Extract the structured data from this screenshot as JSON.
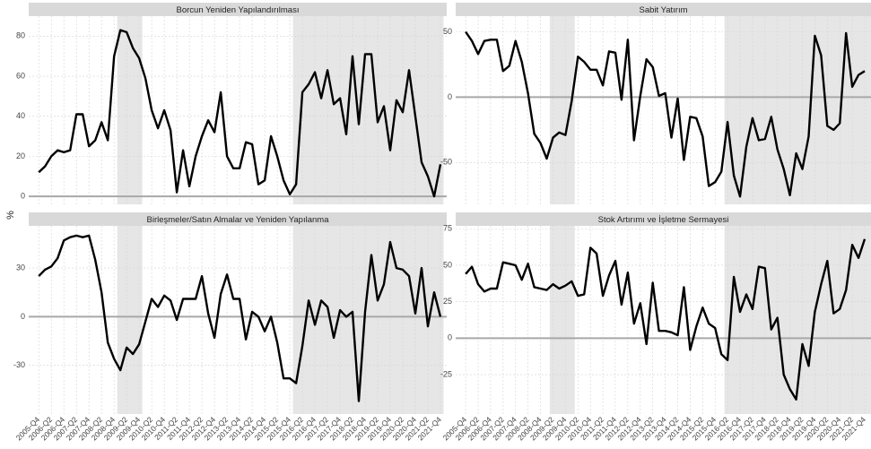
{
  "ylabel": "%",
  "chart_data": [
    {
      "type": "line",
      "title": "Borcun Yeniden Yapılandırılması",
      "color": "#000000",
      "ylim": [
        -4,
        90
      ],
      "yticks": [
        0,
        20,
        40,
        60,
        80
      ],
      "hline": 0,
      "grid": true,
      "shaded": [
        {
          "from": 12.5,
          "to": 16.5
        },
        {
          "from": 40.5,
          "to": 64.5
        }
      ],
      "values": [
        12,
        15,
        20,
        23,
        22,
        23,
        41,
        41,
        25,
        28,
        37,
        28,
        70,
        83,
        82,
        74,
        69,
        59,
        43,
        34,
        43,
        33,
        2,
        23,
        5,
        20,
        30,
        38,
        32,
        52,
        20,
        14,
        14,
        27,
        26,
        6,
        8,
        30,
        20,
        8,
        1,
        6,
        52,
        56,
        62,
        49,
        63,
        46,
        49,
        31,
        70,
        36,
        71,
        71,
        37,
        45,
        23,
        48,
        42,
        63,
        40,
        17,
        10,
        0,
        16
      ]
    },
    {
      "type": "line",
      "title": "Sabit Yatırım",
      "color": "#000000",
      "ylim": [
        -82,
        62
      ],
      "yticks": [
        -50,
        0,
        50
      ],
      "hline": 0,
      "grid": true,
      "shaded": [
        {
          "from": 13.5,
          "to": 17.5
        },
        {
          "from": 41.5,
          "to": 65
        }
      ],
      "values": [
        50,
        43,
        33,
        43,
        44,
        44,
        20,
        24,
        43,
        27,
        3,
        -28,
        -35,
        -47,
        -31,
        -27,
        -29,
        -3,
        31,
        27,
        21,
        21,
        9,
        35,
        34,
        -2,
        44,
        -33,
        1,
        29,
        23,
        1,
        3,
        -31,
        -1,
        -48,
        -15,
        -16,
        -30,
        -68,
        -65,
        -57,
        -19,
        -60,
        -76,
        -38,
        -16,
        -33,
        -32,
        -15,
        -40,
        -55,
        -75,
        -43,
        -55,
        -30,
        47,
        32,
        -22,
        -25,
        -20,
        49,
        8,
        17,
        20
      ]
    },
    {
      "type": "line",
      "title": "Birleşmeler/Satın Almalar ve Yeniden Yapılanma",
      "color": "#000000",
      "ylim": [
        -60,
        56
      ],
      "yticks": [
        -30,
        0,
        30
      ],
      "hline": 0,
      "grid": true,
      "shaded": [
        {
          "from": 12.5,
          "to": 16.5
        },
        {
          "from": 40.5,
          "to": 64.5
        }
      ],
      "categories": [
        "2005-Q4",
        null,
        "2006-Q2",
        null,
        "2006-Q4",
        null,
        "2007-Q2",
        null,
        "2007-Q4",
        null,
        "2008-Q2",
        null,
        "2008-Q4",
        null,
        "2009-Q2",
        null,
        "2009-Q4",
        null,
        "2010-Q2",
        null,
        "2010-Q4",
        null,
        "2011-Q2",
        null,
        "2011-Q4",
        null,
        "2012-Q2",
        null,
        "2012-Q4",
        null,
        "2013-Q2",
        null,
        "2013-Q4",
        null,
        "2014-Q2",
        null,
        "2014-Q4",
        null,
        "2015-Q2",
        null,
        "2015-Q4",
        null,
        "2016-Q2",
        null,
        "2016-Q4",
        null,
        "2017-Q2",
        null,
        "2017-Q4",
        null,
        "2018-Q2",
        null,
        "2018-Q4",
        null,
        "2019-Q2",
        null,
        "2019-Q4",
        null,
        "2020-Q2",
        null,
        "2020-Q4",
        null,
        "2021-Q2",
        null,
        "2021-Q4"
      ],
      "values": [
        25,
        29,
        31,
        36,
        47,
        49,
        50,
        49,
        50,
        35,
        15,
        -16,
        -26,
        -33,
        -19,
        -23,
        -17,
        -3,
        11,
        6,
        13,
        10,
        -2,
        11,
        11,
        11,
        25,
        2,
        -13,
        14,
        26,
        11,
        11,
        -14,
        3,
        0,
        -9,
        0,
        -16,
        -38,
        -38,
        -41,
        -18,
        10,
        -5,
        10,
        6,
        -13,
        4,
        0,
        3,
        -52,
        3,
        38,
        10,
        20,
        46,
        30,
        29,
        25,
        2,
        30,
        -6,
        15,
        0
      ]
    },
    {
      "type": "line",
      "title": "Stok Artırımı ve İşletme Sermayesi",
      "color": "#000000",
      "ylim": [
        -52,
        77
      ],
      "yticks": [
        -25,
        0,
        25,
        50,
        75
      ],
      "hline": 0,
      "grid": true,
      "shaded": [
        {
          "from": 13.5,
          "to": 17.5
        },
        {
          "from": 41.5,
          "to": 65
        }
      ],
      "categories": [
        "2005-Q4",
        null,
        "2006-Q2",
        null,
        "2006-Q4",
        null,
        "2007-Q2",
        null,
        "2007-Q4",
        null,
        "2008-Q2",
        null,
        "2008-Q4",
        null,
        "2009-Q2",
        null,
        "2009-Q4",
        null,
        "2010-Q2",
        null,
        "2010-Q4",
        null,
        "2011-Q2",
        null,
        "2011-Q4",
        null,
        "2012-Q2",
        null,
        "2012-Q4",
        null,
        "2013-Q2",
        null,
        "2013-Q4",
        null,
        "2014-Q2",
        null,
        "2014-Q4",
        null,
        "2015-Q2",
        null,
        "2015-Q4",
        null,
        "2016-Q2",
        null,
        "2016-Q4",
        null,
        "2017-Q2",
        null,
        "2017-Q4",
        null,
        "2018-Q2",
        null,
        "2018-Q4",
        null,
        "2019-Q2",
        null,
        "2019-Q4",
        null,
        "2020-Q2",
        null,
        "2020-Q4",
        null,
        "2021-Q2",
        null,
        "2021-Q4"
      ],
      "values": [
        44,
        49,
        37,
        32,
        34,
        34,
        52,
        51,
        50,
        40,
        51,
        35,
        34,
        33,
        37,
        34,
        36,
        39,
        29,
        30,
        62,
        58,
        29,
        43,
        53,
        23,
        45,
        10,
        24,
        -4,
        38,
        5,
        5,
        4,
        2,
        35,
        -8,
        8,
        21,
        10,
        7,
        -11,
        -15,
        42,
        18,
        30,
        20,
        49,
        48,
        6,
        14,
        -25,
        -35,
        -42,
        -4,
        -19,
        18,
        37,
        53,
        17,
        20,
        33,
        64,
        55,
        68
      ]
    }
  ]
}
